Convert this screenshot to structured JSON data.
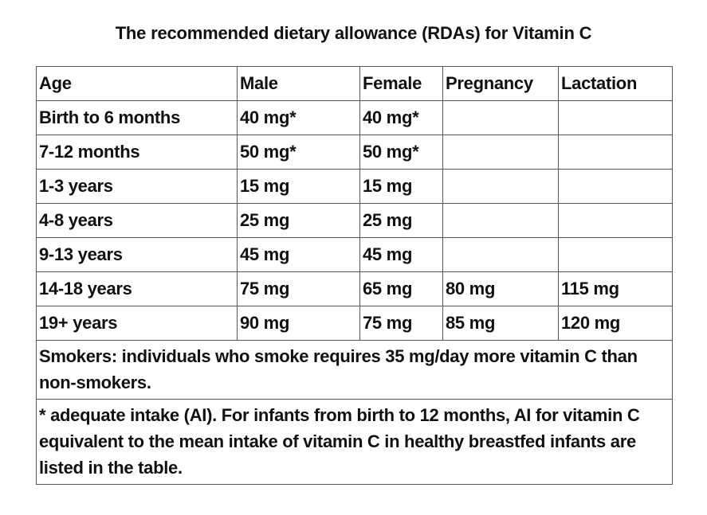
{
  "title": "The recommended dietary allowance (RDAs) for Vitamin C",
  "table": {
    "headers": [
      "Age",
      "Male",
      "Female",
      "Pregnancy",
      "Lactation"
    ],
    "rows": [
      [
        "Birth to 6 months",
        "40 mg*",
        "40 mg*",
        "",
        ""
      ],
      [
        "7-12 months",
        "50 mg*",
        "50 mg*",
        "",
        ""
      ],
      [
        "1-3 years",
        "15 mg",
        "15 mg",
        "",
        ""
      ],
      [
        "4-8 years",
        "25 mg",
        "25 mg",
        "",
        ""
      ],
      [
        "9-13 years",
        "45 mg",
        "45 mg",
        "",
        ""
      ],
      [
        "14-18 years",
        "75 mg",
        "65 mg",
        "80 mg",
        "115 mg"
      ],
      [
        "19+ years",
        "90 mg",
        "75 mg",
        "85 mg",
        "120 mg"
      ]
    ],
    "smokers_note": "Smokers: individuals who smoke requires 35 mg/day more vitamin C than non-smokers.",
    "footnote": "* adequate intake (AI). For infants from birth to 12 months, AI for vitamin C equivalent to the mean intake of vitamin C in healthy breastfed infants are listed in the table."
  }
}
